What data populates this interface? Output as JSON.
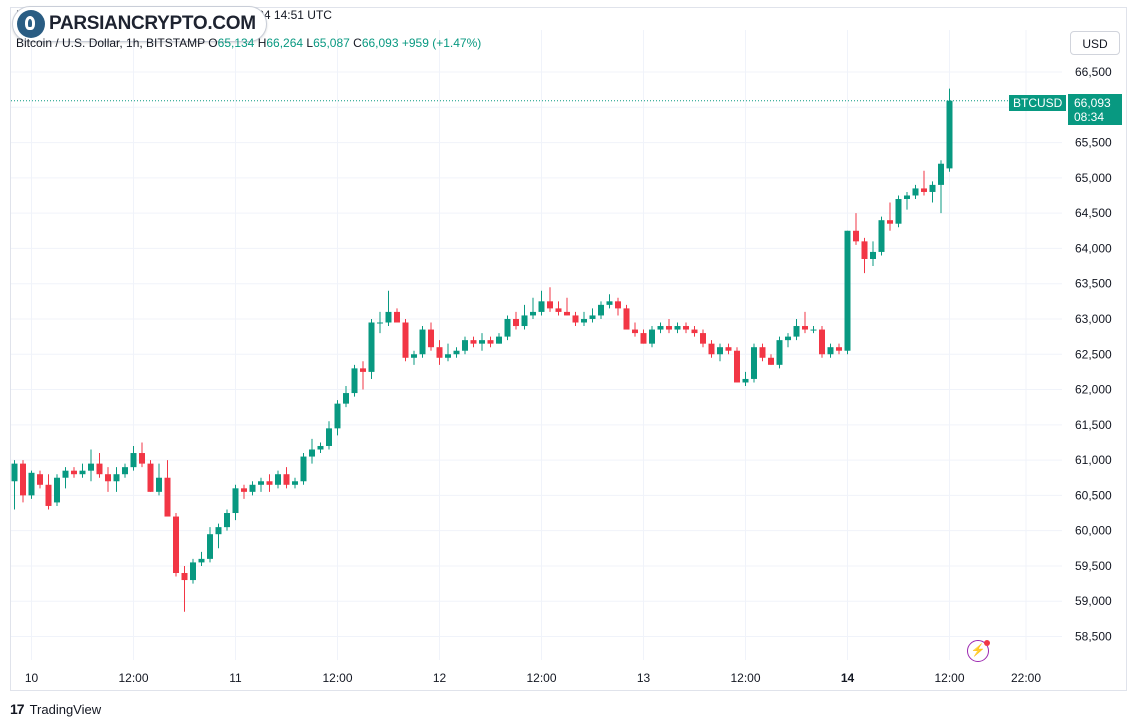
{
  "header": {
    "source_line": "Published on … TradingView.com, Oct 14, 2024 14:51 UTC",
    "symbol_desc": "Bitcoin / U.S. Dollar, 1h, BITSTAMP",
    "o_label": "O",
    "o_value": "65,134",
    "h_label": "H",
    "h_value": "66,264",
    "l_label": "L",
    "l_value": "65,087",
    "c_label": "C",
    "c_value": "66,093",
    "change": "+959 (+1.47%)"
  },
  "watermark": {
    "text": "PARSIANCRYPTO.COM"
  },
  "currency_button": "USD",
  "last_price": {
    "symbol": "BTCUSD",
    "price": "66,093",
    "countdown": "08:34",
    "value": 66093
  },
  "footer": {
    "brand": "TradingView",
    "logo_glyph": "17"
  },
  "colors": {
    "up": "#089981",
    "down": "#f23645",
    "grid": "#f0f3fa",
    "text": "#131722"
  },
  "chart_data": {
    "type": "candlestick",
    "ylim": [
      58300,
      66800
    ],
    "y_ticks": [
      58500,
      59000,
      59500,
      60000,
      60500,
      61000,
      61500,
      62000,
      62500,
      63000,
      63500,
      64000,
      64500,
      65000,
      65500,
      66000,
      66500
    ],
    "y_tick_labels": [
      "58,500",
      "59,000",
      "59,500",
      "60,000",
      "60,500",
      "61,000",
      "61,500",
      "62,000",
      "62,500",
      "63,000",
      "63,500",
      "64,000",
      "64,500",
      "65,000",
      "65,500",
      "66,000",
      "66,500"
    ],
    "x_ticks": [
      {
        "index": 2,
        "label": "10",
        "bold": false
      },
      {
        "index": 14,
        "label": "12:00",
        "bold": false
      },
      {
        "index": 26,
        "label": "11",
        "bold": false
      },
      {
        "index": 38,
        "label": "12:00",
        "bold": false
      },
      {
        "index": 50,
        "label": "12",
        "bold": false
      },
      {
        "index": 62,
        "label": "12:00",
        "bold": false
      },
      {
        "index": 74,
        "label": "13",
        "bold": false
      },
      {
        "index": 86,
        "label": "12:00",
        "bold": false
      },
      {
        "index": 98,
        "label": "14",
        "bold": true
      },
      {
        "index": 110,
        "label": "12:00",
        "bold": false
      },
      {
        "index": 119,
        "label": "22:00",
        "bold": false
      }
    ],
    "candles": [
      [
        60700,
        61000,
        60300,
        60950
      ],
      [
        60950,
        61000,
        60400,
        60500
      ],
      [
        60500,
        60850,
        60450,
        60820
      ],
      [
        60800,
        60850,
        60600,
        60650
      ],
      [
        60650,
        60800,
        60300,
        60350
      ],
      [
        60400,
        60800,
        60350,
        60750
      ],
      [
        60750,
        60900,
        60600,
        60850
      ],
      [
        60850,
        60900,
        60750,
        60800
      ],
      [
        60800,
        60950,
        60750,
        60850
      ],
      [
        60850,
        61150,
        60700,
        60950
      ],
      [
        60950,
        61100,
        60750,
        60800
      ],
      [
        60800,
        60900,
        60550,
        60700
      ],
      [
        60700,
        60900,
        60550,
        60800
      ],
      [
        60800,
        60950,
        60750,
        60900
      ],
      [
        60900,
        61200,
        60850,
        61100
      ],
      [
        61100,
        61250,
        60900,
        60950
      ],
      [
        60950,
        61000,
        60550,
        60550
      ],
      [
        60550,
        60950,
        60500,
        60750
      ],
      [
        60750,
        61000,
        60200,
        60200
      ],
      [
        60200,
        60250,
        59350,
        59400
      ],
      [
        59400,
        59500,
        58850,
        59300
      ],
      [
        59300,
        59600,
        59250,
        59550
      ],
      [
        59550,
        59700,
        59500,
        59600
      ],
      [
        59600,
        60050,
        59550,
        59950
      ],
      [
        59950,
        60100,
        59750,
        60050
      ],
      [
        60050,
        60300,
        60000,
        60250
      ],
      [
        60250,
        60650,
        60150,
        60600
      ],
      [
        60600,
        60650,
        60450,
        60550
      ],
      [
        60550,
        60700,
        60500,
        60650
      ],
      [
        60650,
        60750,
        60550,
        60700
      ],
      [
        60700,
        60800,
        60550,
        60650
      ],
      [
        60650,
        60850,
        60600,
        60800
      ],
      [
        60800,
        60900,
        60600,
        60650
      ],
      [
        60650,
        60750,
        60600,
        60700
      ],
      [
        60700,
        61100,
        60650,
        61050
      ],
      [
        61050,
        61300,
        60950,
        61150
      ],
      [
        61150,
        61250,
        61100,
        61200
      ],
      [
        61200,
        61550,
        61150,
        61450
      ],
      [
        61450,
        61850,
        61350,
        61800
      ],
      [
        61800,
        62050,
        61750,
        61950
      ],
      [
        61950,
        62350,
        61900,
        62300
      ],
      [
        62300,
        62400,
        62000,
        62250
      ],
      [
        62250,
        63000,
        62150,
        62950
      ],
      [
        62950,
        63100,
        62800,
        62950
      ],
      [
        62950,
        63400,
        62900,
        63100
      ],
      [
        63100,
        63150,
        62950,
        62950
      ],
      [
        62950,
        63000,
        62400,
        62450
      ],
      [
        62450,
        62550,
        62350,
        62500
      ],
      [
        62500,
        62900,
        62450,
        62850
      ],
      [
        62850,
        62950,
        62550,
        62600
      ],
      [
        62600,
        62700,
        62350,
        62450
      ],
      [
        62450,
        62650,
        62400,
        62500
      ],
      [
        62500,
        62600,
        62450,
        62550
      ],
      [
        62550,
        62750,
        62500,
        62700
      ],
      [
        62700,
        62750,
        62600,
        62650
      ],
      [
        62650,
        62800,
        62550,
        62700
      ],
      [
        62700,
        62750,
        62600,
        62650
      ],
      [
        62650,
        62800,
        62650,
        62750
      ],
      [
        62750,
        63050,
        62700,
        63000
      ],
      [
        63000,
        63100,
        62850,
        62900
      ],
      [
        62900,
        63200,
        62850,
        63050
      ],
      [
        63050,
        63300,
        63000,
        63100
      ],
      [
        63100,
        63400,
        63050,
        63250
      ],
      [
        63250,
        63450,
        63100,
        63150
      ],
      [
        63150,
        63250,
        63050,
        63100
      ],
      [
        63100,
        63300,
        63050,
        63050
      ],
      [
        63050,
        63100,
        62900,
        62950
      ],
      [
        62950,
        63100,
        62900,
        63000
      ],
      [
        63000,
        63150,
        62950,
        63050
      ],
      [
        63050,
        63250,
        63000,
        63200
      ],
      [
        63200,
        63350,
        63150,
        63250
      ],
      [
        63250,
        63300,
        63050,
        63150
      ],
      [
        63150,
        63200,
        62850,
        62850
      ],
      [
        62850,
        62950,
        62750,
        62800
      ],
      [
        62800,
        62850,
        62650,
        62650
      ],
      [
        62650,
        62900,
        62600,
        62850
      ],
      [
        62850,
        62950,
        62800,
        62900
      ],
      [
        62900,
        63000,
        62800,
        62850
      ],
      [
        62850,
        62950,
        62800,
        62900
      ],
      [
        62900,
        62950,
        62800,
        62850
      ],
      [
        62850,
        62900,
        62750,
        62800
      ],
      [
        62800,
        62850,
        62600,
        62650
      ],
      [
        62650,
        62700,
        62450,
        62500
      ],
      [
        62500,
        62650,
        62400,
        62600
      ],
      [
        62600,
        62650,
        62500,
        62550
      ],
      [
        62550,
        62600,
        62100,
        62100
      ],
      [
        62100,
        62250,
        62050,
        62150
      ],
      [
        62150,
        62650,
        62100,
        62600
      ],
      [
        62600,
        62650,
        62400,
        62450
      ],
      [
        62450,
        62500,
        62350,
        62350
      ],
      [
        62350,
        62750,
        62300,
        62700
      ],
      [
        62700,
        62800,
        62600,
        62750
      ],
      [
        62750,
        63000,
        62700,
        62900
      ],
      [
        62900,
        63100,
        62800,
        62850
      ],
      [
        62850,
        62900,
        62800,
        62850
      ],
      [
        62850,
        62900,
        62450,
        62500
      ],
      [
        62500,
        62650,
        62450,
        62600
      ],
      [
        62600,
        62650,
        62500,
        62550
      ],
      [
        62550,
        64250,
        62500,
        64250
      ],
      [
        64250,
        64500,
        64050,
        64100
      ],
      [
        64100,
        64150,
        63650,
        63850
      ],
      [
        63850,
        64100,
        63750,
        63950
      ],
      [
        63950,
        64450,
        63900,
        64400
      ],
      [
        64400,
        64650,
        64250,
        64350
      ],
      [
        64350,
        64750,
        64300,
        64700
      ],
      [
        64700,
        64800,
        64550,
        64750
      ],
      [
        64750,
        64900,
        64700,
        64850
      ],
      [
        64850,
        65100,
        64750,
        64800
      ],
      [
        64800,
        64950,
        64650,
        64900
      ],
      [
        64900,
        65250,
        64500,
        65200
      ],
      [
        65134,
        66264,
        65087,
        66093
      ]
    ]
  }
}
